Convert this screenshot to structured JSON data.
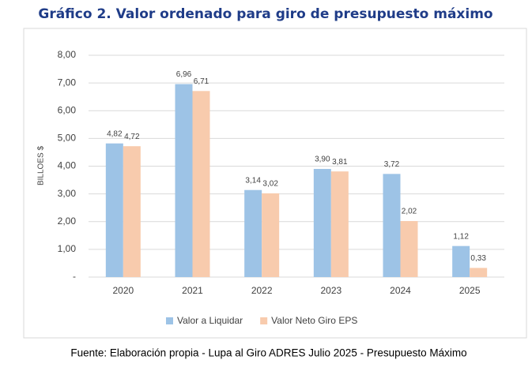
{
  "chart_data": {
    "type": "bar",
    "title": "Gráfico 2. Valor ordenado para giro de presupuesto máximo",
    "y_label": "BILLOES $",
    "source": "Fuente: Elaboración propia  - Lupa al Giro ADRES Julio 2025 -  Presupuesto Máximo",
    "categories": [
      "2020",
      "2021",
      "2022",
      "2023",
      "2024",
      "2025"
    ],
    "series": [
      {
        "name": "Valor a Liquidar",
        "color": "#9dc3e6",
        "values": [
          4.82,
          6.96,
          3.14,
          3.9,
          3.72,
          1.12
        ],
        "value_labels": [
          "4,82",
          "6,96",
          "3,14",
          "3,90",
          "3,72",
          "1,12"
        ]
      },
      {
        "name": "Valor Neto Giro EPS",
        "color": "#f8cbad",
        "values": [
          4.72,
          6.71,
          3.02,
          3.81,
          2.02,
          0.33
        ],
        "value_labels": [
          "4,72",
          "6,71",
          "3,02",
          "3,81",
          "2,02",
          "0,33"
        ]
      }
    ],
    "ylim": [
      0,
      8
    ],
    "yticks": [
      {
        "value": 0,
        "label": "-"
      },
      {
        "value": 1,
        "label": "1,00"
      },
      {
        "value": 2,
        "label": "2,00"
      },
      {
        "value": 3,
        "label": "3,00"
      },
      {
        "value": 4,
        "label": "4,00"
      },
      {
        "value": 5,
        "label": "5,00"
      },
      {
        "value": 6,
        "label": "6,00"
      },
      {
        "value": 7,
        "label": "7,00"
      },
      {
        "value": 8,
        "label": "8,00"
      }
    ],
    "grid": true,
    "legend": "bottom"
  }
}
